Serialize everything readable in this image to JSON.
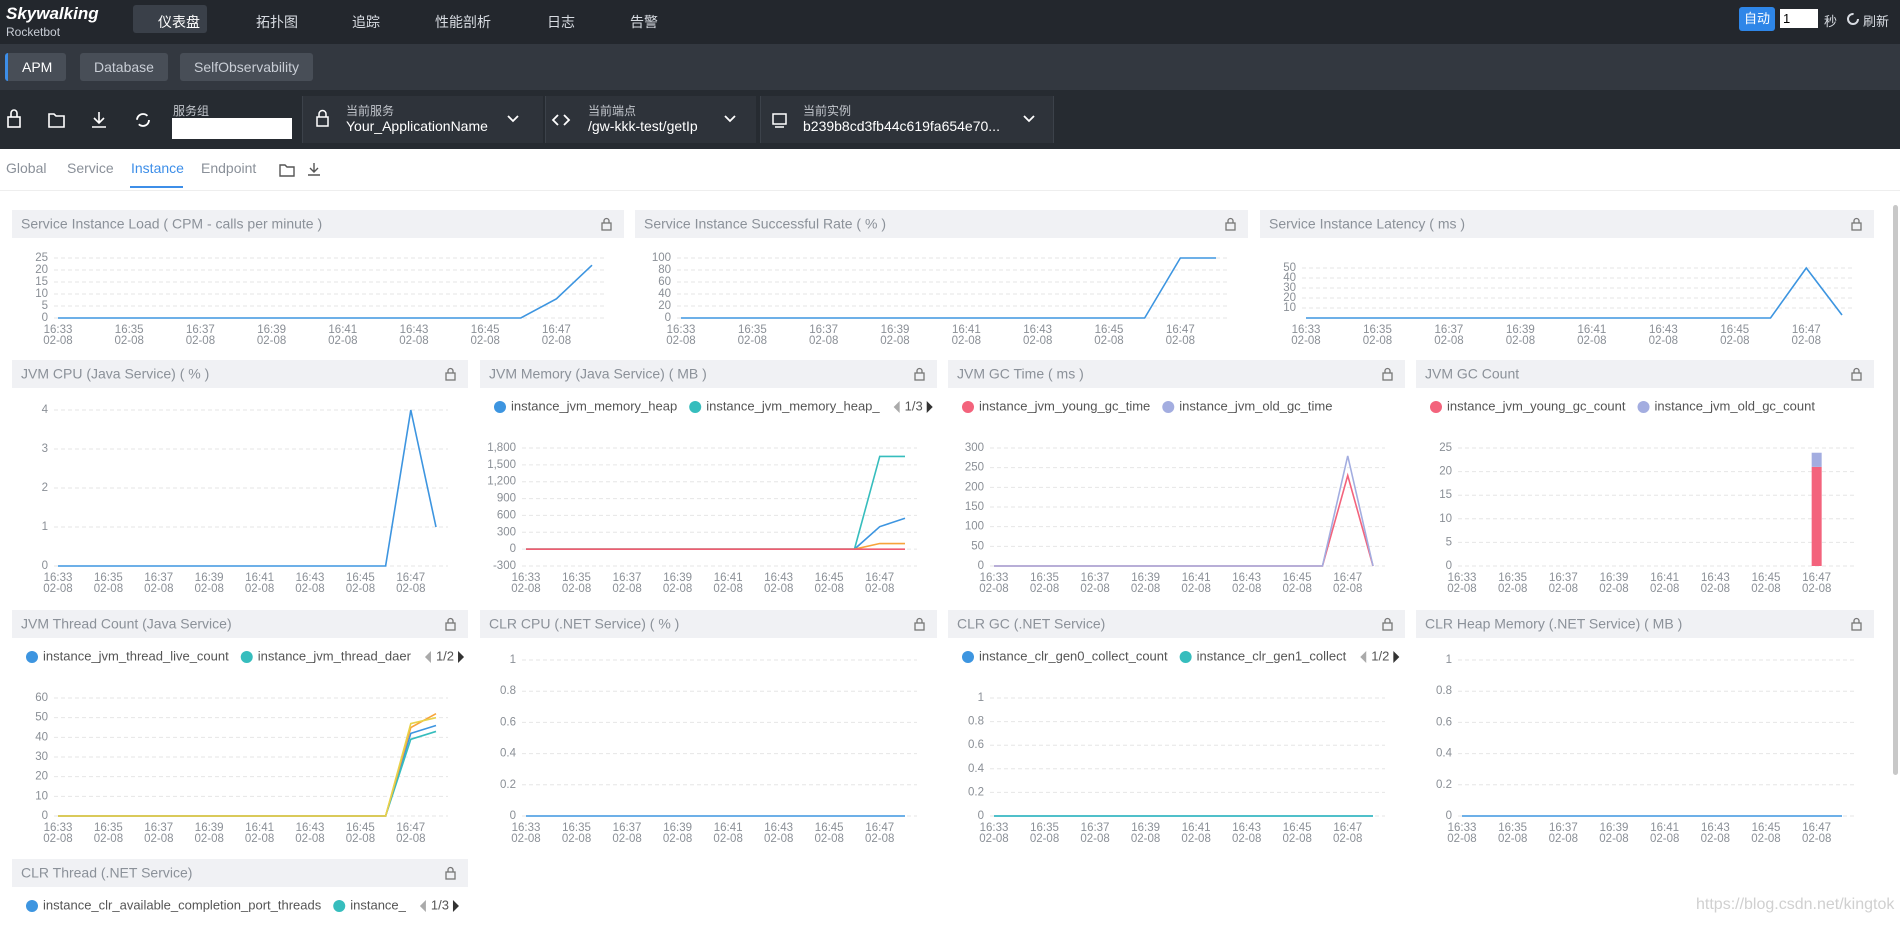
{
  "header": {
    "brand": "Skywalking",
    "sub": "Rocketbot",
    "nav": [
      "仪表盘",
      "拓扑图",
      "追踪",
      "性能剖析",
      "日志",
      "告警"
    ],
    "auto": "自动",
    "interval": "1",
    "unit": "秒",
    "refresh": "刷新"
  },
  "layers": [
    "APM",
    "Database",
    "SelfObservability"
  ],
  "toolbar": {
    "group_label": "服务组",
    "service_label": "当前服务",
    "service": "Your_ApplicationName",
    "endpoint_label": "当前端点",
    "endpoint": "/gw-kkk-test/getIp",
    "instance_label": "当前实例",
    "instance": "b239b8cd3fb44c619fa654e70..."
  },
  "tabs": [
    "Global",
    "Service",
    "Instance",
    "Endpoint"
  ],
  "chart_data": [
    {
      "type": "line",
      "title": "Service Instance Load ( CPM - calls per minute )",
      "x_date": "02-08",
      "categories": [
        "16:33",
        null,
        "16:35",
        null,
        "16:37",
        null,
        "16:39",
        null,
        "16:41",
        null,
        "16:43",
        null,
        "16:45",
        null,
        "16:47",
        null
      ],
      "ylim": [
        0,
        25
      ],
      "yticks": [
        0,
        5,
        10,
        15,
        20,
        25
      ],
      "series": [
        {
          "color": "#3d95e0",
          "values": [
            0,
            0,
            0,
            0,
            0,
            0,
            0,
            0,
            0,
            0,
            0,
            0,
            0,
            0,
            8,
            22
          ]
        }
      ]
    },
    {
      "type": "line",
      "title": "Service Instance Successful Rate ( % )",
      "x_date": "02-08",
      "categories": [
        "16:33",
        null,
        "16:35",
        null,
        "16:37",
        null,
        "16:39",
        null,
        "16:41",
        null,
        "16:43",
        null,
        "16:45",
        null,
        "16:47",
        null
      ],
      "ylim": [
        0,
        100
      ],
      "yticks": [
        0,
        20,
        40,
        60,
        80,
        100
      ],
      "series": [
        {
          "color": "#3d95e0",
          "values": [
            0,
            0,
            0,
            0,
            0,
            0,
            0,
            0,
            0,
            0,
            0,
            0,
            0,
            0,
            100,
            100
          ]
        }
      ]
    },
    {
      "type": "line",
      "title": "Service Instance Latency ( ms )",
      "x_date": "02-08",
      "categories": [
        "16:33",
        null,
        "16:35",
        null,
        "16:37",
        null,
        "16:39",
        null,
        "16:41",
        null,
        "16:43",
        null,
        "16:45",
        null,
        "16:47",
        null
      ],
      "ylim": [
        0,
        60
      ],
      "yticks": [
        10,
        20,
        30,
        40,
        50
      ],
      "series": [
        {
          "color": "#3d95e0",
          "values": [
            0,
            0,
            0,
            0,
            0,
            0,
            0,
            0,
            0,
            0,
            0,
            0,
            0,
            0,
            50,
            3
          ]
        }
      ]
    },
    {
      "type": "line",
      "title": "JVM CPU (Java Service) ( % )",
      "x_date": "02-08",
      "categories": [
        "16:33",
        null,
        "16:35",
        null,
        "16:37",
        null,
        "16:39",
        null,
        "16:41",
        null,
        "16:43",
        null,
        "16:45",
        null,
        "16:47",
        null
      ],
      "ylim": [
        0,
        4
      ],
      "yticks": [
        0,
        1,
        2,
        3,
        4
      ],
      "series": [
        {
          "color": "#3d95e0",
          "values": [
            0,
            0,
            0,
            0,
            0,
            0,
            0,
            0,
            0,
            0,
            0,
            0,
            0,
            0,
            4,
            1
          ]
        }
      ]
    },
    {
      "type": "line",
      "title": "JVM Memory (Java Service) ( MB )",
      "x_date": "02-08",
      "legend_page": "1/3",
      "categories": [
        "16:33",
        null,
        "16:35",
        null,
        "16:37",
        null,
        "16:39",
        null,
        "16:41",
        null,
        "16:43",
        null,
        "16:45",
        null,
        "16:47",
        null
      ],
      "ylim": [
        -300,
        1800
      ],
      "yticks": [
        -300,
        0,
        300,
        600,
        900,
        {
          "value": 1200,
          "label": "1,200"
        },
        {
          "value": 1500,
          "label": "1,500"
        },
        {
          "value": 1800,
          "label": "1,800"
        }
      ],
      "series": [
        {
          "name": "instance_jvm_memory_heap",
          "color": "#3d95e0",
          "values": [
            0,
            0,
            0,
            0,
            0,
            0,
            0,
            0,
            0,
            0,
            0,
            0,
            0,
            0,
            400,
            550
          ]
        },
        {
          "name": "instance_jvm_memory_heap_",
          "color": "#36bdbd",
          "values": [
            0,
            0,
            0,
            0,
            0,
            0,
            0,
            0,
            0,
            0,
            0,
            0,
            0,
            0,
            1650,
            1650
          ]
        },
        {
          "color": "#f7a33a",
          "values": [
            0,
            0,
            0,
            0,
            0,
            0,
            0,
            0,
            0,
            0,
            0,
            0,
            0,
            0,
            100,
            100
          ]
        },
        {
          "color": "#ef5c72",
          "values": [
            0,
            0,
            0,
            0,
            0,
            0,
            0,
            0,
            0,
            0,
            0,
            0,
            0,
            0,
            0,
            0
          ]
        }
      ]
    },
    {
      "type": "line",
      "title": "JVM GC Time ( ms )",
      "x_date": "02-08",
      "categories": [
        "16:33",
        null,
        "16:35",
        null,
        "16:37",
        null,
        "16:39",
        null,
        "16:41",
        null,
        "16:43",
        null,
        "16:45",
        null,
        "16:47",
        null
      ],
      "ylim": [
        0,
        300
      ],
      "yticks": [
        0,
        50,
        100,
        150,
        200,
        250,
        300
      ],
      "series": [
        {
          "name": "instance_jvm_young_gc_time",
          "color": "#f3637c",
          "values": [
            0,
            0,
            0,
            0,
            0,
            0,
            0,
            0,
            0,
            0,
            0,
            0,
            0,
            0,
            230,
            0
          ]
        },
        {
          "name": "instance_jvm_old_gc_time",
          "color": "#a3ade0",
          "values": [
            0,
            0,
            0,
            0,
            0,
            0,
            0,
            0,
            0,
            0,
            0,
            0,
            0,
            0,
            280,
            0
          ]
        }
      ]
    },
    {
      "type": "bar",
      "title": "JVM GC Count",
      "x_date": "02-08",
      "categories": [
        "16:33",
        null,
        "16:35",
        null,
        "16:37",
        null,
        "16:39",
        null,
        "16:41",
        null,
        "16:43",
        null,
        "16:45",
        null,
        "16:47",
        null
      ],
      "ylim": [
        0,
        25
      ],
      "yticks": [
        0,
        5,
        10,
        15,
        20,
        25
      ],
      "series": [
        {
          "name": "instance_jvm_young_gc_count",
          "color": "#f3637c",
          "values": [
            0,
            0,
            0,
            0,
            0,
            0,
            0,
            0,
            0,
            0,
            0,
            0,
            0,
            0,
            21,
            0
          ]
        },
        {
          "name": "instance_jvm_old_gc_count",
          "color": "#a3ade0",
          "values": [
            0,
            0,
            0,
            0,
            0,
            0,
            0,
            0,
            0,
            0,
            0,
            0,
            0,
            0,
            3,
            0
          ]
        }
      ]
    },
    {
      "type": "line",
      "title": "JVM Thread Count (Java Service)",
      "x_date": "02-08",
      "legend_page": "1/2",
      "categories": [
        "16:33",
        null,
        "16:35",
        null,
        "16:37",
        null,
        "16:39",
        null,
        "16:41",
        null,
        "16:43",
        null,
        "16:45",
        null,
        "16:47",
        null
      ],
      "ylim": [
        0,
        60
      ],
      "yticks": [
        0,
        10,
        20,
        30,
        40,
        50,
        60
      ],
      "series": [
        {
          "name": "instance_jvm_thread_live_count",
          "color": "#3d95e0",
          "values": [
            0,
            0,
            0,
            0,
            0,
            0,
            0,
            0,
            0,
            0,
            0,
            0,
            0,
            0,
            42,
            46
          ]
        },
        {
          "name": "instance_jvm_thread_daer",
          "color": "#36bdbd",
          "values": [
            0,
            0,
            0,
            0,
            0,
            0,
            0,
            0,
            0,
            0,
            0,
            0,
            0,
            0,
            39,
            43
          ]
        },
        {
          "color": "#f7a33a",
          "values": [
            0,
            0,
            0,
            0,
            0,
            0,
            0,
            0,
            0,
            0,
            0,
            0,
            0,
            0,
            45,
            52
          ]
        },
        {
          "color": "#e8d24a",
          "values": [
            0,
            0,
            0,
            0,
            0,
            0,
            0,
            0,
            0,
            0,
            0,
            0,
            0,
            0,
            47,
            50
          ]
        }
      ]
    },
    {
      "type": "line",
      "title": "CLR CPU (.NET Service) ( % )",
      "x_date": "02-08",
      "categories": [
        "16:33",
        null,
        "16:35",
        null,
        "16:37",
        null,
        "16:39",
        null,
        "16:41",
        null,
        "16:43",
        null,
        "16:45",
        null,
        "16:47",
        null
      ],
      "ylim": [
        0,
        1
      ],
      "yticks": [
        0,
        0.2,
        0.4,
        0.6,
        0.8,
        1
      ],
      "series": [
        {
          "color": "#3d95e0",
          "values": [
            0,
            0,
            0,
            0,
            0,
            0,
            0,
            0,
            0,
            0,
            0,
            0,
            0,
            0,
            0,
            0
          ]
        }
      ]
    },
    {
      "type": "line",
      "title": "CLR GC (.NET Service)",
      "x_date": "02-08",
      "legend_page": "1/2",
      "categories": [
        "16:33",
        null,
        "16:35",
        null,
        "16:37",
        null,
        "16:39",
        null,
        "16:41",
        null,
        "16:43",
        null,
        "16:45",
        null,
        "16:47",
        null
      ],
      "ylim": [
        0,
        1
      ],
      "yticks": [
        0,
        0.2,
        0.4,
        0.6,
        0.8,
        1
      ],
      "series": [
        {
          "name": "instance_clr_gen0_collect_count",
          "color": "#3d95e0",
          "values": [
            0,
            0,
            0,
            0,
            0,
            0,
            0,
            0,
            0,
            0,
            0,
            0,
            0,
            0,
            0,
            0
          ]
        },
        {
          "name": "instance_clr_gen1_collect",
          "color": "#36bdbd",
          "values": [
            0,
            0,
            0,
            0,
            0,
            0,
            0,
            0,
            0,
            0,
            0,
            0,
            0,
            0,
            0,
            0
          ]
        }
      ]
    },
    {
      "type": "line",
      "title": "CLR Heap Memory (.NET Service) ( MB )",
      "x_date": "02-08",
      "categories": [
        "16:33",
        null,
        "16:35",
        null,
        "16:37",
        null,
        "16:39",
        null,
        "16:41",
        null,
        "16:43",
        null,
        "16:45",
        null,
        "16:47",
        null
      ],
      "ylim": [
        0,
        1
      ],
      "yticks": [
        0,
        0.2,
        0.4,
        0.6,
        0.8,
        1
      ],
      "series": [
        {
          "color": "#3d95e0",
          "values": [
            0,
            0,
            0,
            0,
            0,
            0,
            0,
            0,
            0,
            0,
            0,
            0,
            0,
            0,
            0,
            0
          ]
        }
      ]
    },
    {
      "type": "line",
      "title": "CLR Thread (.NET Service)",
      "legend_page": "1/3",
      "series": [
        {
          "name": "instance_clr_available_completion_port_threads",
          "color": "#3d95e0"
        },
        {
          "name": "instance_",
          "color": "#36bdbd"
        }
      ]
    }
  ],
  "watermark": "https://blog.csdn.net/kingtok"
}
